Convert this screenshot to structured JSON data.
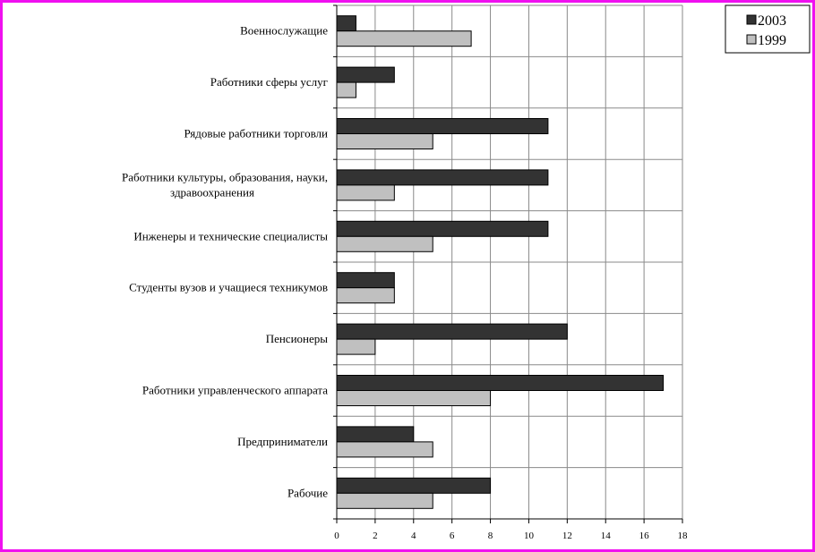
{
  "chart_data": {
    "type": "bar",
    "orientation": "horizontal",
    "categories": [
      [
        "Военнослужащие"
      ],
      [
        "Работники сферы услуг"
      ],
      [
        "Рядовые работники торговли"
      ],
      [
        "Работники культуры, образования, науки,",
        "здравоохранения"
      ],
      [
        "Инженеры и технические специалисты"
      ],
      [
        "Студенты вузов и учащиеся техникумов"
      ],
      [
        "Пенсионеры"
      ],
      [
        "Работники управленческого аппарата"
      ],
      [
        "Предприниматели"
      ],
      [
        "Рабочие"
      ]
    ],
    "series": [
      {
        "name": "2003",
        "color": "#333333",
        "values": [
          1,
          3,
          11,
          11,
          11,
          3,
          12,
          17,
          4,
          8
        ]
      },
      {
        "name": "1999",
        "color": "#c0c0c0",
        "values": [
          7,
          1,
          5,
          3,
          5,
          3,
          2,
          8,
          5,
          5
        ]
      }
    ],
    "xlim": [
      0,
      18
    ],
    "xticks": [
      "0",
      "2",
      "4",
      "6",
      "8",
      "10",
      "12",
      "14",
      "16",
      "18"
    ],
    "grid": true,
    "legend_position": "top-right",
    "frame_color": "#f010f0"
  }
}
